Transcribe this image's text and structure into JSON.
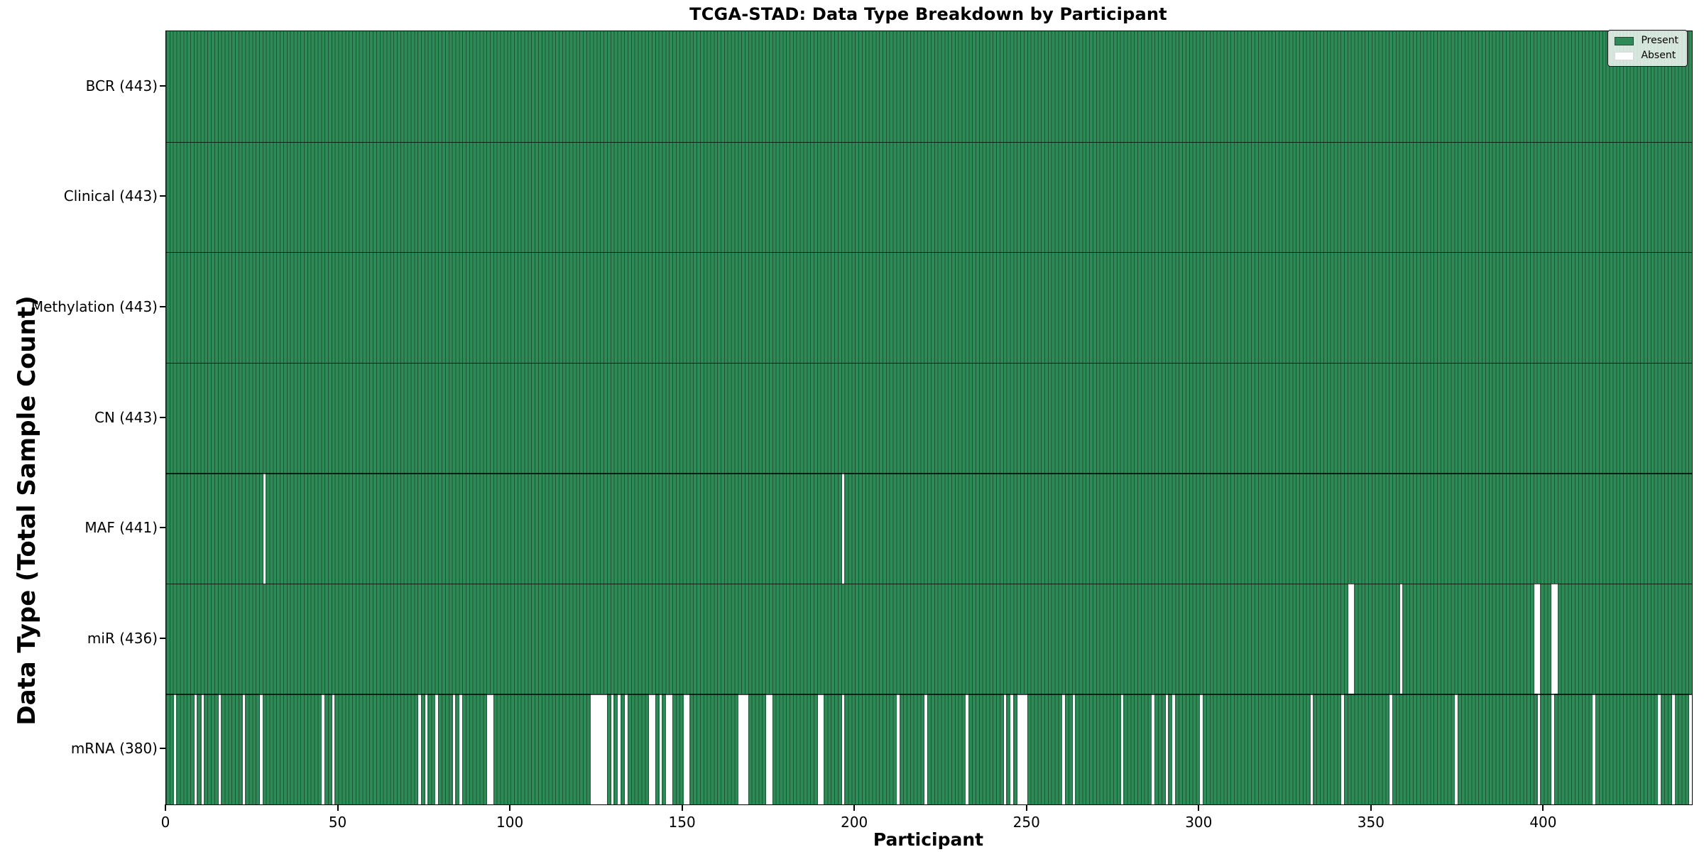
{
  "title": "TCGA-STAD: Data Type Breakdown by Participant",
  "chart_data": {
    "type": "heatmap",
    "title": "TCGA-STAD: Data Type Breakdown by Participant",
    "xlabel": "Participant",
    "ylabel": "Data Type (Total Sample Count)",
    "x_ticks": [
      0,
      50,
      100,
      150,
      200,
      250,
      300,
      350,
      400
    ],
    "x_range": [
      0,
      443
    ],
    "n_participants": 443,
    "grid": false,
    "legend_position": "upper right",
    "colors": {
      "present": "#2e8b57",
      "absent": "#ffffff",
      "edge": "#1e5435",
      "axis": "#000000"
    },
    "legend": [
      {
        "label": "Present",
        "color": "#2e8b57"
      },
      {
        "label": "Absent",
        "color": "#ffffff"
      }
    ],
    "rows": [
      {
        "label": "BCR",
        "total": 443,
        "tick_label": "BCR (443)",
        "absent": []
      },
      {
        "label": "Clinical",
        "total": 443,
        "tick_label": "Clinical (443)",
        "absent": []
      },
      {
        "label": "Methylation",
        "total": 443,
        "tick_label": "Methylation (443)",
        "absent": []
      },
      {
        "label": "CN",
        "total": 443,
        "tick_label": "CN (443)",
        "absent": []
      },
      {
        "label": "MAF",
        "total": 441,
        "tick_label": "MAF (441)",
        "absent": [
          28,
          196
        ]
      },
      {
        "label": "miR",
        "total": 436,
        "tick_label": "miR (436)",
        "absent": [
          343,
          344,
          358,
          397,
          398,
          402,
          403
        ]
      },
      {
        "label": "mRNA",
        "total": 380,
        "tick_label": "mRNA (380)",
        "absent": [
          2,
          8,
          10,
          15,
          22,
          27,
          45,
          48,
          73,
          75,
          78,
          83,
          85,
          93,
          94,
          123,
          124,
          125,
          126,
          127,
          129,
          131,
          133,
          140,
          141,
          143,
          145,
          146,
          150,
          151,
          166,
          167,
          168,
          174,
          175,
          189,
          190,
          196,
          212,
          220,
          232,
          243,
          245,
          247,
          248,
          249,
          260,
          263,
          277,
          286,
          290,
          292,
          300,
          332,
          341,
          355,
          374,
          398,
          402,
          414,
          433,
          437,
          442
        ]
      }
    ]
  }
}
